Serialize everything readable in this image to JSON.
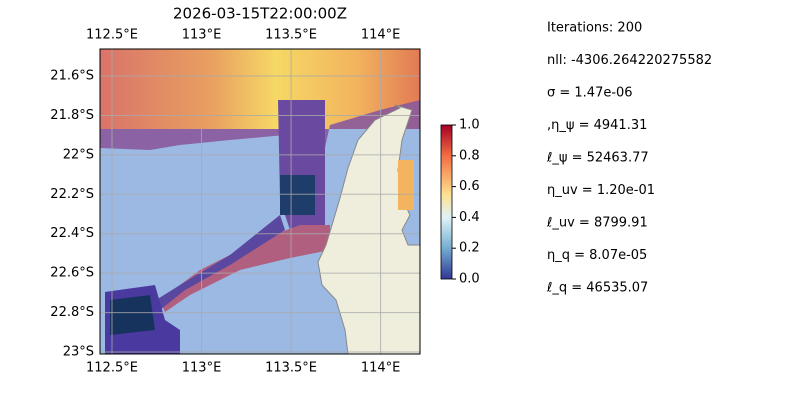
{
  "map": {
    "title": "2026-03-15T22:00:00Z",
    "xlim": [
      112.433,
      114.22
    ],
    "ylim": [
      -23.01,
      -21.463
    ],
    "xticks": [
      {
        "value": 112.5,
        "label": "112.5°E"
      },
      {
        "value": 113,
        "label": "113°E"
      },
      {
        "value": 113.5,
        "label": "113.5°E"
      },
      {
        "value": 114,
        "label": "114°E"
      }
    ],
    "yticks": [
      {
        "value": -21.6,
        "label": "21.6°S"
      },
      {
        "value": -21.8,
        "label": "21.8°S"
      },
      {
        "value": -22,
        "label": "22°S"
      },
      {
        "value": -22.2,
        "label": "22.2°S"
      },
      {
        "value": -22.4,
        "label": "22.4°S"
      },
      {
        "value": -22.6,
        "label": "22.6°S"
      },
      {
        "value": -22.8,
        "label": "22.8°S"
      },
      {
        "value": -23,
        "label": "23°S"
      }
    ],
    "grid": true
  },
  "colorbar": {
    "lim": [
      0,
      1
    ],
    "ticks": [
      {
        "value": 0,
        "label": "0.0"
      },
      {
        "value": 0.2,
        "label": "0.2"
      },
      {
        "value": 0.4,
        "label": "0.4"
      },
      {
        "value": 0.6,
        "label": "0.6"
      },
      {
        "value": 0.8,
        "label": "0.8"
      },
      {
        "value": 1,
        "label": "1.0"
      }
    ]
  },
  "info": [
    "Iterations: 200",
    "nll: -4306.264220275582",
    "σ = 1.47e-06",
    ",η_ψ = 4941.31",
    "ℓ_ψ = 52463.77",
    "η_uv = 1.20e-01",
    "ℓ_uv = 8799.91",
    "η_q = 8.07e-05",
    "ℓ_q = 46535.07"
  ]
}
